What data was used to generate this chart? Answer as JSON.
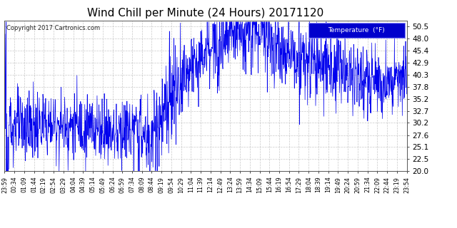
{
  "title": "Wind Chill per Minute (24 Hours) 20171120",
  "copyright": "Copyright 2017 Cartronics.com",
  "line_color": "#0000EE",
  "background_color": "#ffffff",
  "plot_bg_color": "#ffffff",
  "grid_color": "#bbbbbb",
  "ylim": [
    20.0,
    51.8
  ],
  "yticks": [
    20.0,
    22.5,
    25.1,
    27.6,
    30.2,
    32.7,
    35.2,
    37.8,
    40.3,
    42.9,
    45.4,
    48.0,
    50.5
  ],
  "legend_bg": "#0000CC",
  "legend_text": "Temperature  (°F)",
  "title_fontsize": 11,
  "xtick_labels": [
    "23:59",
    "00:34",
    "01:09",
    "01:44",
    "02:19",
    "02:54",
    "03:29",
    "04:04",
    "04:39",
    "05:14",
    "05:49",
    "06:24",
    "06:59",
    "07:34",
    "08:09",
    "08:44",
    "09:19",
    "09:54",
    "10:29",
    "11:04",
    "11:39",
    "12:14",
    "12:49",
    "13:24",
    "13:59",
    "14:34",
    "15:09",
    "15:44",
    "16:19",
    "16:54",
    "17:29",
    "18:04",
    "18:39",
    "19:14",
    "19:49",
    "20:24",
    "20:59",
    "21:34",
    "22:09",
    "22:44",
    "23:19",
    "23:54"
  ]
}
